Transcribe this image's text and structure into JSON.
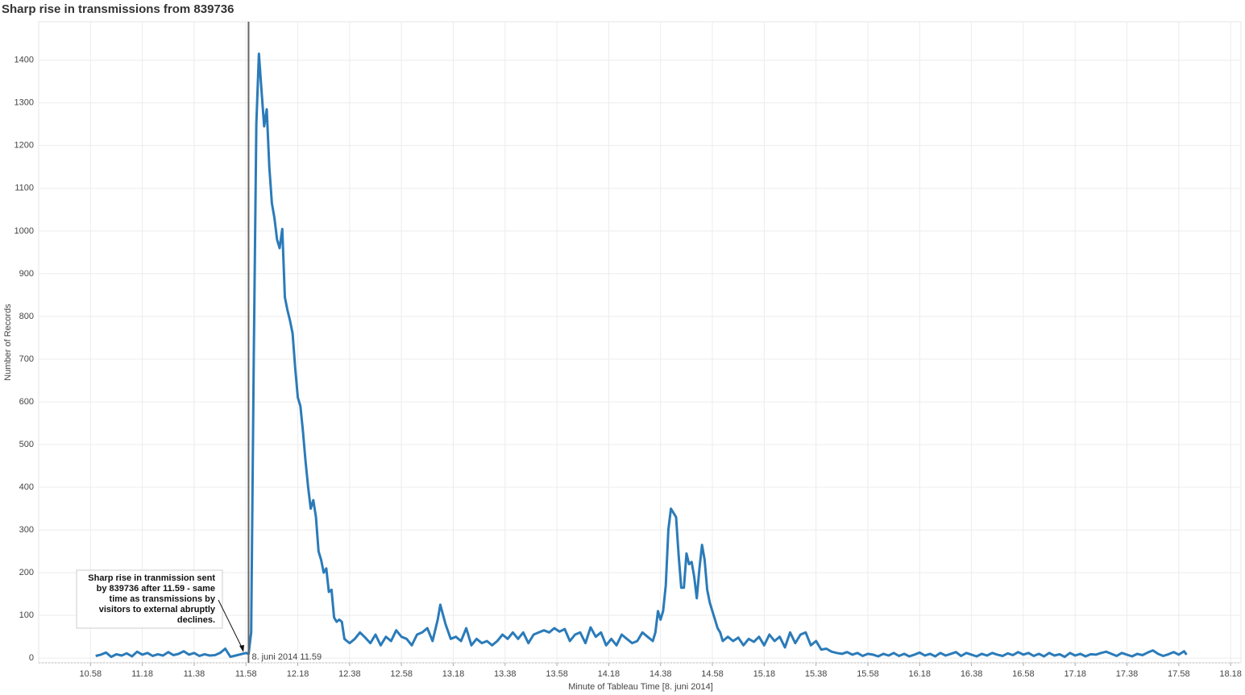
{
  "chart_data": {
    "type": "line",
    "title": "Sharp rise in transmissions from 839736",
    "y_label": "Number of Records",
    "x_label": "Minute of Tableau Time [8. juni 2014]",
    "color": "#2b7bb9",
    "grid": true,
    "xlim": [
      638,
      1102
    ],
    "ylim": [
      -11,
      1490
    ],
    "xticks": [
      {
        "value": 658,
        "label": "10.58"
      },
      {
        "value": 678,
        "label": "11.18"
      },
      {
        "value": 698,
        "label": "11.38"
      },
      {
        "value": 718,
        "label": "11.58"
      },
      {
        "value": 738,
        "label": "12.18"
      },
      {
        "value": 758,
        "label": "12.38"
      },
      {
        "value": 778,
        "label": "12.58"
      },
      {
        "value": 798,
        "label": "13.18"
      },
      {
        "value": 818,
        "label": "13.38"
      },
      {
        "value": 838,
        "label": "13.58"
      },
      {
        "value": 858,
        "label": "14.18"
      },
      {
        "value": 878,
        "label": "14.38"
      },
      {
        "value": 898,
        "label": "14.58"
      },
      {
        "value": 918,
        "label": "15.18"
      },
      {
        "value": 938,
        "label": "15.38"
      },
      {
        "value": 958,
        "label": "15.58"
      },
      {
        "value": 978,
        "label": "16.18"
      },
      {
        "value": 998,
        "label": "16.38"
      },
      {
        "value": 1018,
        "label": "16.58"
      },
      {
        "value": 1038,
        "label": "17.18"
      },
      {
        "value": 1058,
        "label": "17.38"
      },
      {
        "value": 1078,
        "label": "17.58"
      },
      {
        "value": 1098,
        "label": "18.18"
      }
    ],
    "yticks": [
      0,
      100,
      200,
      300,
      400,
      500,
      600,
      700,
      800,
      900,
      1000,
      1100,
      1200,
      1300,
      1400
    ],
    "reference_line": {
      "value": 719,
      "label": "8. juni 2014 11.59"
    },
    "annotation": {
      "lines": [
        "Sharp rise in tranmission sent",
        "by 839736 after 11.59 - same",
        "time as transmissions by",
        "visitors to external abruptly",
        "declines."
      ],
      "x": 717,
      "y": 10
    },
    "x": [
      660,
      662,
      664,
      666,
      668,
      670,
      672,
      674,
      676,
      678,
      680,
      682,
      684,
      686,
      688,
      690,
      692,
      694,
      696,
      698,
      700,
      702,
      704,
      706,
      708,
      710,
      712,
      714,
      716,
      718,
      719,
      720,
      721,
      722,
      723,
      724,
      725,
      726,
      727,
      728,
      729,
      730,
      731,
      732,
      733,
      734,
      735,
      736,
      737,
      738,
      739,
      740,
      741,
      742,
      743,
      744,
      745,
      746,
      747,
      748,
      749,
      750,
      751,
      752,
      753,
      754,
      755,
      756,
      757,
      758,
      760,
      762,
      764,
      766,
      768,
      770,
      772,
      774,
      776,
      778,
      780,
      782,
      784,
      786,
      788,
      790,
      792,
      793,
      795,
      797,
      799,
      801,
      803,
      805,
      807,
      809,
      811,
      813,
      815,
      817,
      819,
      821,
      823,
      825,
      827,
      829,
      831,
      833,
      835,
      837,
      839,
      841,
      843,
      845,
      847,
      849,
      851,
      853,
      855,
      857,
      859,
      861,
      863,
      865,
      867,
      869,
      871,
      873,
      875,
      876,
      877,
      878,
      879,
      880,
      881,
      882,
      883,
      884,
      885,
      886,
      887,
      888,
      889,
      890,
      891,
      892,
      893,
      894,
      895,
      896,
      897,
      898,
      899,
      900,
      901,
      902,
      904,
      906,
      908,
      910,
      912,
      914,
      916,
      918,
      920,
      922,
      924,
      926,
      928,
      930,
      932,
      934,
      936,
      938,
      940,
      942,
      944,
      946,
      948,
      950,
      952,
      954,
      956,
      958,
      960,
      962,
      964,
      966,
      968,
      970,
      972,
      974,
      976,
      978,
      980,
      982,
      984,
      986,
      988,
      990,
      992,
      994,
      996,
      998,
      1000,
      1002,
      1004,
      1006,
      1008,
      1010,
      1012,
      1014,
      1016,
      1018,
      1020,
      1022,
      1024,
      1026,
      1028,
      1030,
      1032,
      1034,
      1036,
      1038,
      1040,
      1042,
      1044,
      1046,
      1048,
      1050,
      1052,
      1054,
      1056,
      1058,
      1060,
      1062,
      1064,
      1066,
      1068,
      1070,
      1072,
      1074,
      1076,
      1078,
      1080,
      1081
    ],
    "values": [
      5,
      8,
      13,
      3,
      9,
      6,
      11,
      4,
      15,
      8,
      12,
      5,
      9,
      6,
      14,
      7,
      10,
      16,
      8,
      12,
      5,
      9,
      6,
      7,
      12,
      22,
      3,
      6,
      9,
      12,
      10,
      60,
      700,
      1250,
      1415,
      1330,
      1245,
      1285,
      1150,
      1065,
      1030,
      980,
      960,
      1005,
      845,
      815,
      790,
      760,
      680,
      610,
      590,
      530,
      460,
      400,
      350,
      370,
      330,
      250,
      230,
      200,
      210,
      155,
      160,
      95,
      85,
      90,
      85,
      45,
      40,
      35,
      45,
      60,
      48,
      35,
      55,
      30,
      50,
      40,
      65,
      50,
      45,
      30,
      55,
      60,
      70,
      40,
      90,
      125,
      80,
      45,
      50,
      40,
      70,
      30,
      45,
      35,
      40,
      30,
      40,
      55,
      45,
      60,
      45,
      60,
      35,
      55,
      60,
      65,
      60,
      70,
      62,
      68,
      40,
      55,
      60,
      35,
      72,
      50,
      60,
      30,
      45,
      30,
      55,
      45,
      35,
      40,
      60,
      50,
      40,
      60,
      110,
      90,
      110,
      170,
      300,
      350,
      340,
      330,
      240,
      165,
      165,
      245,
      220,
      225,
      190,
      140,
      210,
      265,
      230,
      160,
      130,
      110,
      90,
      70,
      60,
      40,
      50,
      40,
      48,
      30,
      45,
      38,
      50,
      30,
      55,
      40,
      50,
      25,
      60,
      35,
      55,
      60,
      30,
      40,
      20,
      22,
      15,
      12,
      10,
      14,
      8,
      12,
      5,
      10,
      8,
      4,
      10,
      6,
      12,
      5,
      10,
      4,
      8,
      13,
      6,
      10,
      4,
      12,
      6,
      10,
      14,
      5,
      12,
      8,
      4,
      10,
      6,
      12,
      8,
      5,
      11,
      7,
      14,
      8,
      12,
      5,
      10,
      4,
      12,
      6,
      9,
      3,
      12,
      6,
      10,
      4,
      9,
      8,
      12,
      15,
      10,
      5,
      12,
      8,
      4,
      10,
      7,
      13,
      18,
      10,
      5,
      9,
      14,
      8,
      16,
      8
    ]
  }
}
